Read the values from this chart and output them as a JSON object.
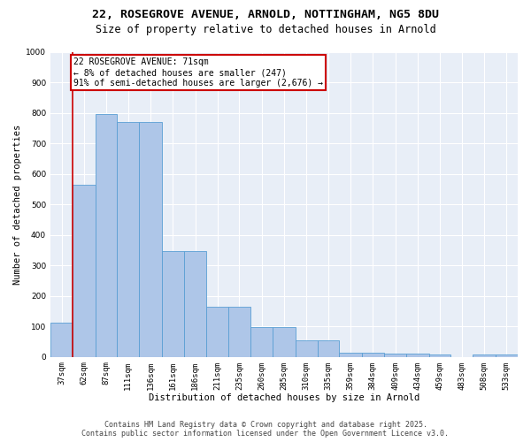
{
  "title_line1": "22, ROSEGROVE AVENUE, ARNOLD, NOTTINGHAM, NG5 8DU",
  "title_line2": "Size of property relative to detached houses in Arnold",
  "xlabel": "Distribution of detached houses by size in Arnold",
  "ylabel": "Number of detached properties",
  "bar_edges": [
    37,
    62,
    87,
    111,
    136,
    161,
    186,
    211,
    235,
    260,
    285,
    310,
    335,
    359,
    384,
    409,
    434,
    459,
    483,
    508,
    533
  ],
  "bar_heights": [
    113,
    565,
    795,
    770,
    770,
    348,
    348,
    163,
    163,
    97,
    97,
    53,
    53,
    15,
    15,
    12,
    12,
    7,
    0,
    7,
    7
  ],
  "bar_color": "#aec6e8",
  "bar_edge_color": "#5a9fd4",
  "bar_edge_width": 0.6,
  "red_line_x": 62,
  "annotation_text": "22 ROSEGROVE AVENUE: 71sqm\n← 8% of detached houses are smaller (247)\n91% of semi-detached houses are larger (2,676) →",
  "annotation_box_color": "#ffffff",
  "annotation_edge_color": "#cc0000",
  "ylim": [
    0,
    1000
  ],
  "yticks": [
    0,
    100,
    200,
    300,
    400,
    500,
    600,
    700,
    800,
    900,
    1000
  ],
  "tick_labels": [
    "37sqm",
    "62sqm",
    "87sqm",
    "111sqm",
    "136sqm",
    "161sqm",
    "186sqm",
    "211sqm",
    "235sqm",
    "260sqm",
    "285sqm",
    "310sqm",
    "335sqm",
    "359sqm",
    "384sqm",
    "409sqm",
    "434sqm",
    "459sqm",
    "483sqm",
    "508sqm",
    "533sqm"
  ],
  "bg_color": "#e8eef7",
  "fig_bg_color": "#ffffff",
  "grid_color": "#ffffff",
  "footer_line1": "Contains HM Land Registry data © Crown copyright and database right 2025.",
  "footer_line2": "Contains public sector information licensed under the Open Government Licence v3.0.",
  "title_fontsize": 9.5,
  "subtitle_fontsize": 8.5,
  "axis_label_fontsize": 7.5,
  "tick_fontsize": 6.5,
  "annotation_fontsize": 7,
  "footer_fontsize": 6
}
